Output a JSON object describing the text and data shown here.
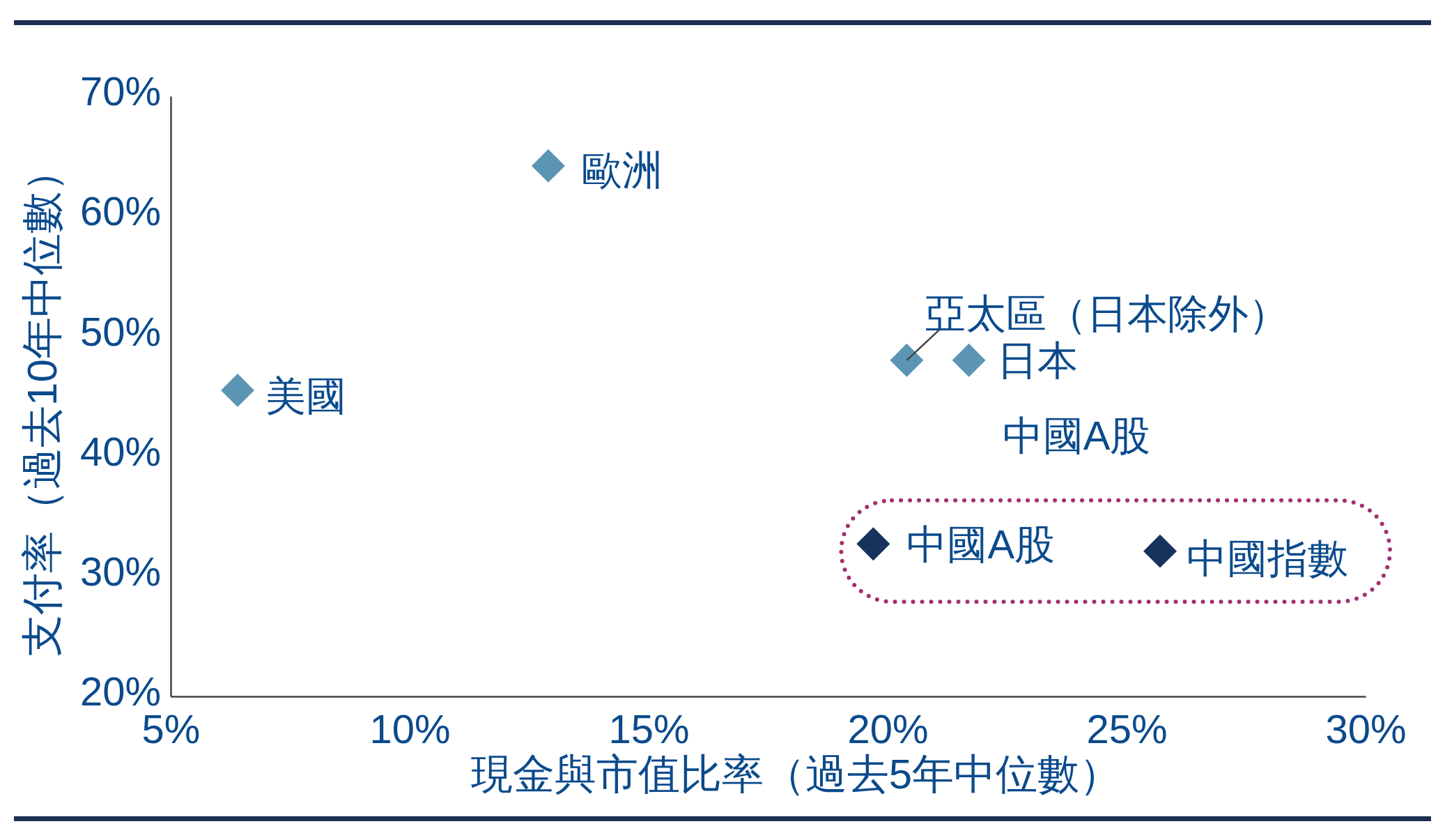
{
  "chart_data": {
    "type": "scatter",
    "xlabel": "現金與市值比率（過去5年中位數）",
    "ylabel": "支付率（過去10年中位數）",
    "xlim": [
      5,
      30
    ],
    "xticks": [
      {
        "value": 5,
        "label": "5%"
      },
      {
        "value": 10,
        "label": "10%"
      },
      {
        "value": 15,
        "label": "15%"
      },
      {
        "value": 20,
        "label": "20%"
      },
      {
        "value": 25,
        "label": "25%"
      },
      {
        "value": 30,
        "label": "30%"
      }
    ],
    "ylim": [
      20,
      70
    ],
    "yticks": [
      {
        "value": 20,
        "label": "20%"
      },
      {
        "value": 30,
        "label": "30%"
      },
      {
        "value": 40,
        "label": "40%"
      },
      {
        "value": 50,
        "label": "50%"
      },
      {
        "value": 60,
        "label": "60%"
      },
      {
        "value": 70,
        "label": "70%"
      }
    ],
    "marker": "diamond",
    "series": [
      {
        "name": "美國",
        "color": "#5b95b3",
        "x": [
          6.4
        ],
        "values": [
          45.5
        ]
      },
      {
        "name": "歐洲",
        "color": "#5b95b3",
        "x": [
          12.9
        ],
        "values": [
          64.2
        ]
      },
      {
        "name": "亞太區（日本除外）",
        "color": "#5b95b3",
        "x": [
          20.4
        ],
        "values": [
          48
        ]
      },
      {
        "name": "日本",
        "color": "#5b95b3",
        "x": [
          21.7
        ],
        "values": [
          48
        ]
      },
      {
        "name": "中國A股",
        "color": "#17325c",
        "x": [
          19.7
        ],
        "values": [
          32.7
        ]
      },
      {
        "name": "中國指數",
        "color": "#17325c",
        "x": [
          25.7
        ],
        "values": [
          32.1
        ]
      }
    ],
    "annotations": [
      "中國A股"
    ]
  }
}
